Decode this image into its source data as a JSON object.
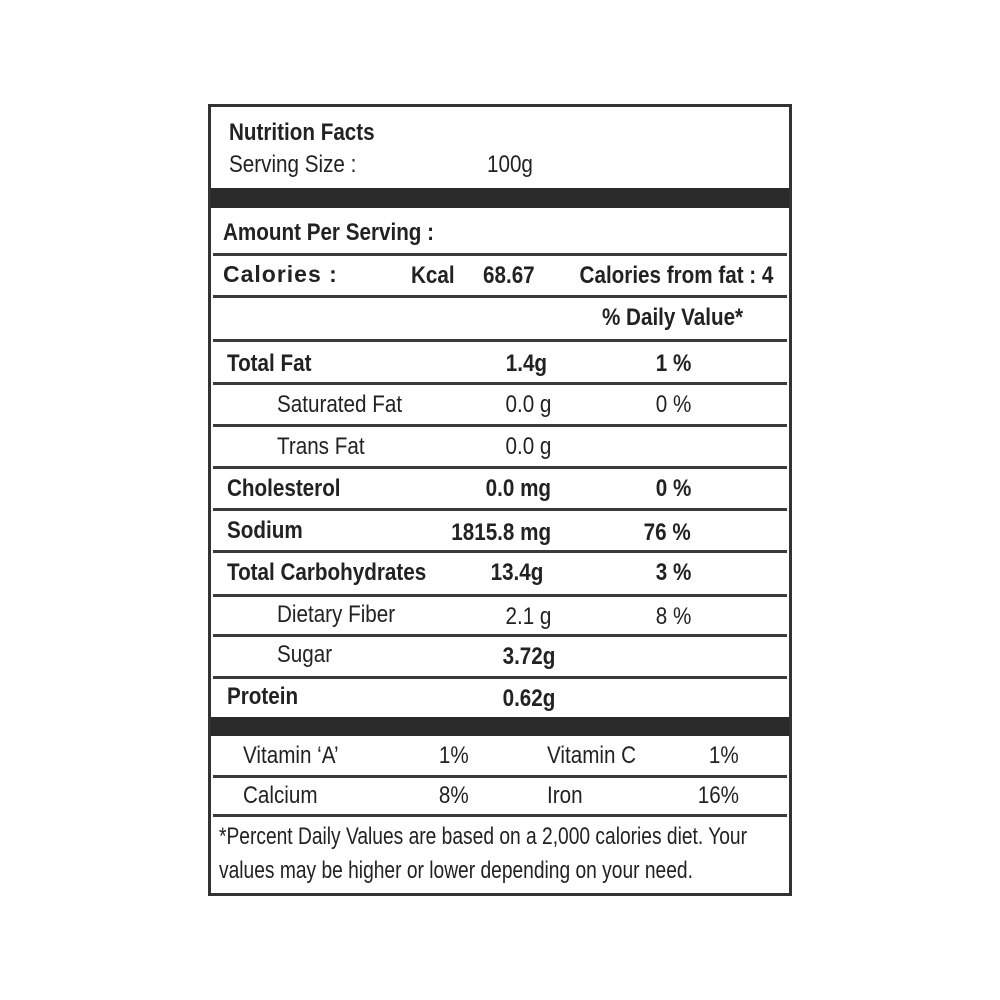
{
  "header": {
    "title": "Nutrition Facts",
    "serving_label": "Serving Size :",
    "serving_value": "100g"
  },
  "amount_per_serving": "Amount Per Serving :",
  "calories": {
    "label": "Calories :",
    "unit": "Kcal",
    "value": "68.67",
    "from_fat": "Calories from fat : 4"
  },
  "daily_value_header": "% Daily Value*",
  "nutrients": [
    {
      "name": "Total Fat",
      "amount": "1.4g",
      "dv": "1 %"
    },
    {
      "name": "Saturated Fat",
      "amount": "0.0 g",
      "dv": "0 %"
    },
    {
      "name": "Trans Fat",
      "amount": "0.0 g",
      "dv": ""
    },
    {
      "name": "Cholesterol",
      "amount": "0.0 mg",
      "dv": "0 %"
    },
    {
      "name": "Sodium",
      "amount": "1815.8 mg",
      "dv": "76 %"
    },
    {
      "name": "Total Carbohydrates",
      "amount": "13.4g",
      "dv": "3 %"
    },
    {
      "name": "Dietary Fiber",
      "amount": "2.1 g",
      "dv": "8 %"
    },
    {
      "name": "Sugar",
      "amount": "3.72g",
      "dv": ""
    },
    {
      "name": "Protein",
      "amount": "0.62g",
      "dv": ""
    }
  ],
  "vitamins": [
    {
      "name1": "Vitamin ‘A’",
      "value1": "1%",
      "name2": "Vitamin C",
      "value2": "1%"
    },
    {
      "name1": "Calcium",
      "value1": "8%",
      "name2": "Iron",
      "value2": "16%"
    }
  ],
  "footnote": {
    "line1": "*Percent Daily Values are based on a 2,000 calories diet. Your",
    "line2": "values may be higher or lower depending on your need."
  }
}
